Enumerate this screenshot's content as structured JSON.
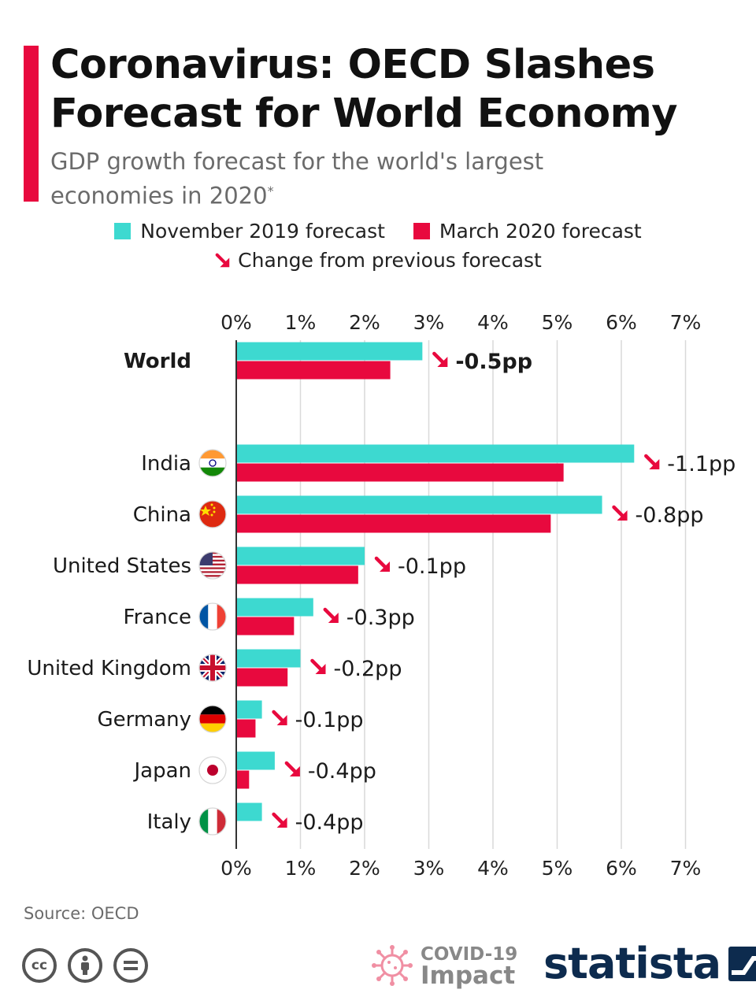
{
  "header": {
    "title": "Coronavirus: OECD Slashes Forecast for World Economy",
    "subtitle": "GDP growth forecast for the world's largest economies in 2020",
    "subtitle_mark": "*"
  },
  "legend": {
    "nov": "November 2019 forecast",
    "mar": "March 2020 forecast",
    "change": "Change from previous forecast"
  },
  "colors": {
    "nov": "#3dd9d0",
    "mar": "#e8093e",
    "accent": "#e8093e",
    "arrow": "#e8093e",
    "grid": "#d9d9d9",
    "axis": "#333333",
    "brand": "#0d2b4e"
  },
  "chart_data": {
    "type": "bar",
    "orientation": "horizontal",
    "categories": [
      "World",
      "India",
      "China",
      "United States",
      "France",
      "United Kingdom",
      "Germany",
      "Japan",
      "Italy"
    ],
    "series": [
      {
        "name": "November 2019 forecast",
        "values": [
          2.9,
          6.2,
          5.7,
          2.0,
          1.2,
          1.0,
          0.4,
          0.6,
          0.4
        ]
      },
      {
        "name": "March 2020 forecast",
        "values": [
          2.4,
          5.1,
          4.9,
          1.9,
          0.9,
          0.8,
          0.3,
          0.2,
          0.0
        ]
      }
    ],
    "changes": [
      "-0.5pp",
      "-1.1pp",
      "-0.8pp",
      "-0.1pp",
      "-0.3pp",
      "-0.2pp",
      "-0.1pp",
      "-0.4pp",
      "-0.4pp"
    ],
    "flags": [
      "",
      "india-flag",
      "china-flag",
      "usa-flag",
      "france-flag",
      "uk-flag",
      "germany-flag",
      "japan-flag",
      "italy-flag"
    ],
    "xlim": [
      0,
      7
    ],
    "ticks": [
      "0%",
      "1%",
      "2%",
      "3%",
      "4%",
      "5%",
      "6%",
      "7%"
    ],
    "grid": true,
    "legend_position": "top"
  },
  "footer": {
    "source": "Source: OECD",
    "license_icons": [
      "cc-icon",
      "attribution-icon",
      "no-derivatives-icon"
    ],
    "covid_line1": "COVID-19",
    "covid_line2": "Impact",
    "brand": "statista"
  }
}
